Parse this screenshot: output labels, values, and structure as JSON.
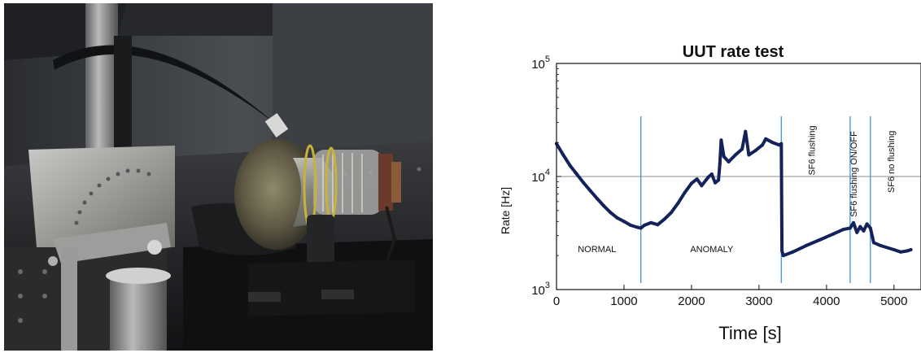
{
  "chart_data": {
    "type": "line",
    "title": "UUT rate test",
    "xlabel": "Time [s]",
    "ylabel": "Rate [Hz]",
    "xlim": [
      0,
      5400
    ],
    "ylim": [
      1000,
      100000
    ],
    "y_scale": "log",
    "x_ticks": [
      0,
      1000,
      2000,
      3000,
      4000,
      5000
    ],
    "y_ticks": [
      {
        "base": "10",
        "exp": "3",
        "value": 1000
      },
      {
        "base": "10",
        "exp": "4",
        "value": 10000
      },
      {
        "base": "10",
        "exp": "5",
        "value": 100000
      }
    ],
    "reference_line_y": 10000,
    "phase_boundaries_x": [
      1250,
      3330,
      4350,
      4650
    ],
    "annotations": [
      {
        "text": "NORMAL",
        "x": 600,
        "y": 2150,
        "orientation": "horizontal"
      },
      {
        "text": "ANOMALY",
        "x": 2300,
        "y": 2150,
        "orientation": "horizontal"
      },
      {
        "text": "SF6 flushing",
        "x": 3830,
        "y": 17000,
        "orientation": "vertical"
      },
      {
        "text": "SF6 flushing ON/OFF",
        "x": 4450,
        "y": 10500,
        "orientation": "vertical"
      },
      {
        "text": "SF6 no flushing",
        "x": 5000,
        "y": 13500,
        "orientation": "vertical"
      }
    ],
    "series": [
      {
        "line_color": "#14225a",
        "points": [
          [
            0,
            19500
          ],
          [
            100,
            15500
          ],
          [
            200,
            12500
          ],
          [
            300,
            10500
          ],
          [
            400,
            8800
          ],
          [
            500,
            7500
          ],
          [
            600,
            6400
          ],
          [
            700,
            5500
          ],
          [
            800,
            4800
          ],
          [
            900,
            4300
          ],
          [
            1000,
            4000
          ],
          [
            1100,
            3700
          ],
          [
            1200,
            3550
          ],
          [
            1250,
            3500
          ],
          [
            1300,
            3700
          ],
          [
            1400,
            3900
          ],
          [
            1500,
            3750
          ],
          [
            1600,
            4200
          ],
          [
            1700,
            4800
          ],
          [
            1800,
            5800
          ],
          [
            1900,
            7200
          ],
          [
            2000,
            8700
          ],
          [
            2080,
            9500
          ],
          [
            2150,
            8300
          ],
          [
            2250,
            9900
          ],
          [
            2300,
            10500
          ],
          [
            2350,
            8800
          ],
          [
            2400,
            9300
          ],
          [
            2420,
            13000
          ],
          [
            2440,
            21000
          ],
          [
            2480,
            15000
          ],
          [
            2550,
            13500
          ],
          [
            2650,
            15500
          ],
          [
            2750,
            17500
          ],
          [
            2800,
            25000
          ],
          [
            2850,
            15500
          ],
          [
            2950,
            17000
          ],
          [
            3050,
            19000
          ],
          [
            3100,
            21500
          ],
          [
            3200,
            20000
          ],
          [
            3300,
            19000
          ],
          [
            3330,
            19500
          ],
          [
            3340,
            2200
          ],
          [
            3360,
            2000
          ],
          [
            3500,
            2150
          ],
          [
            3700,
            2450
          ],
          [
            3900,
            2750
          ],
          [
            4100,
            3100
          ],
          [
            4250,
            3400
          ],
          [
            4350,
            3500
          ],
          [
            4400,
            3900
          ],
          [
            4450,
            3200
          ],
          [
            4500,
            3600
          ],
          [
            4550,
            3300
          ],
          [
            4600,
            3800
          ],
          [
            4650,
            3500
          ],
          [
            4700,
            2600
          ],
          [
            4800,
            2450
          ],
          [
            5000,
            2250
          ],
          [
            5100,
            2150
          ],
          [
            5200,
            2200
          ],
          [
            5250,
            2250
          ]
        ]
      }
    ]
  }
}
